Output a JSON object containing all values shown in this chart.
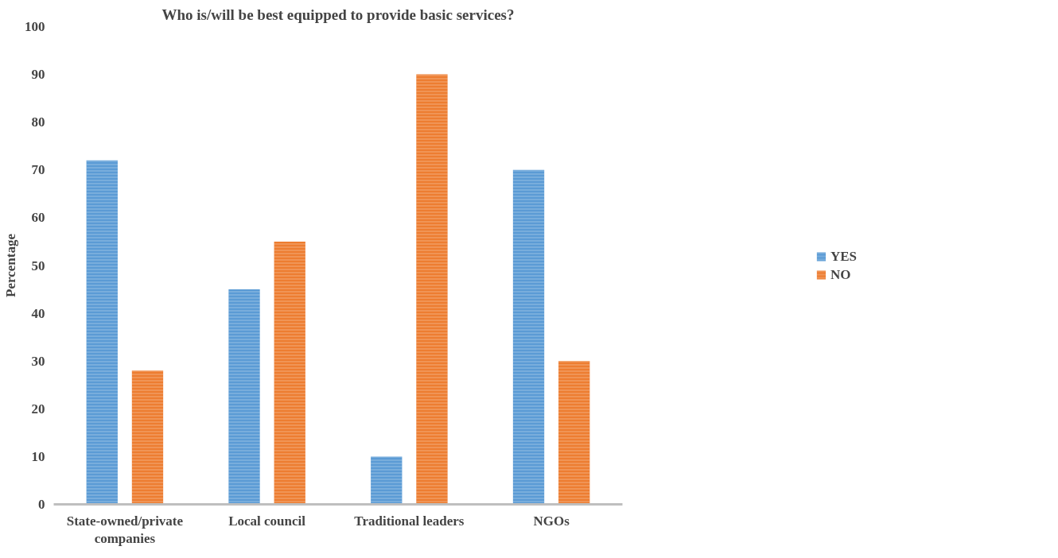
{
  "chart_data": {
    "type": "bar",
    "title": "Who is/will be best equipped to provide basic services?",
    "ylabel": "Percentage",
    "categories": [
      "State-owned/private companies",
      "Local council",
      "Traditional leaders",
      "NGOs"
    ],
    "series": [
      {
        "name": "YES",
        "color": "#5b9bd5",
        "values": [
          72,
          45,
          10,
          70
        ]
      },
      {
        "name": "NO",
        "color": "#ed7d31",
        "values": [
          28,
          55,
          90,
          30
        ]
      }
    ],
    "ylim": [
      0,
      100
    ],
    "yticks": [
      0,
      10,
      20,
      30,
      40,
      50,
      60,
      70,
      80,
      90,
      100
    ],
    "grid": false,
    "legend": "right"
  }
}
